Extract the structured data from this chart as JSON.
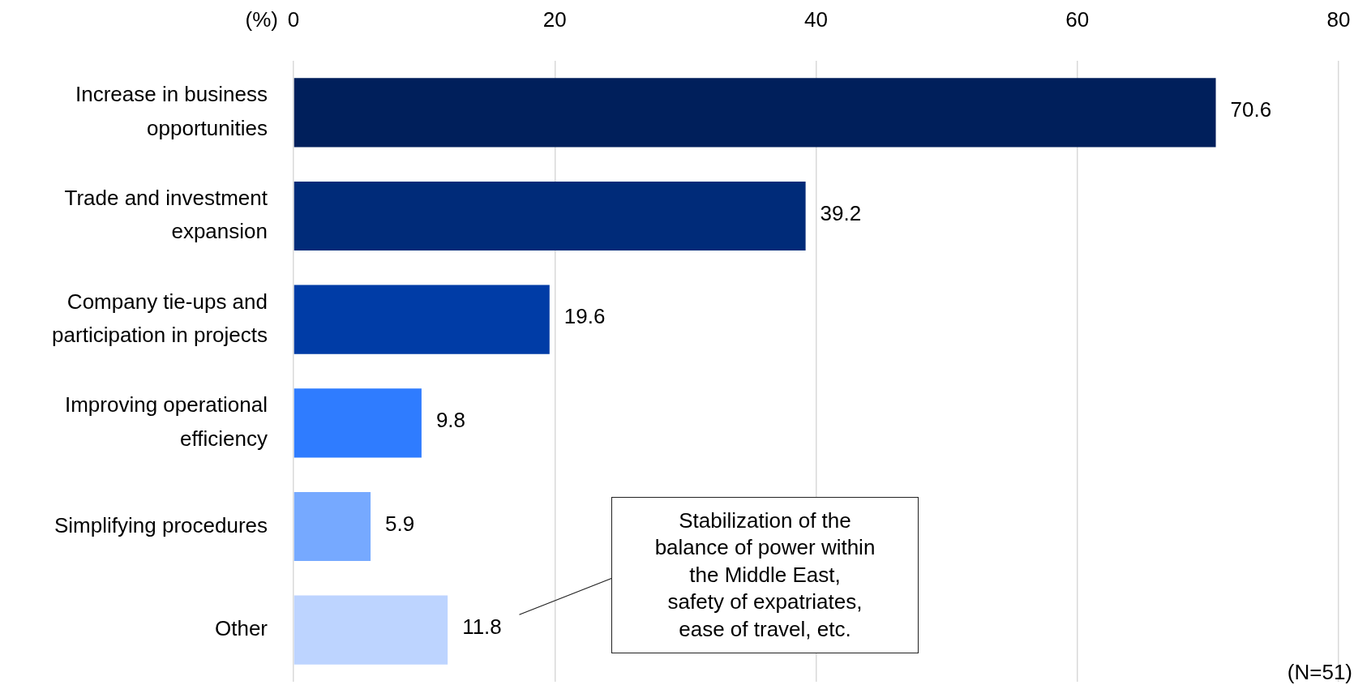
{
  "chart_data": {
    "type": "bar",
    "orientation": "horizontal",
    "xlabel": "(%)",
    "categories": [
      "Increase in business opportunities",
      "Trade and investment expansion",
      "Company tie-ups and participation in projects",
      "Improving operational efficiency",
      "Simplifying procedures",
      "Other"
    ],
    "values": [
      70.6,
      39.2,
      19.6,
      9.8,
      5.9,
      11.8
    ],
    "colors": [
      "#001f5b",
      "#002b79",
      "#003ca6",
      "#2f7cff",
      "#76a9ff",
      "#bdd4ff"
    ],
    "xlim": [
      0,
      80
    ],
    "xticks": [
      0,
      20,
      40,
      60,
      80
    ],
    "grid": "x",
    "data_labels": true,
    "annotations": [
      "Stabilization of the\nbalance of power within\nthe Middle East,\nsafety of expatriates,\nease of travel, etc.",
      "(N=51)"
    ]
  }
}
